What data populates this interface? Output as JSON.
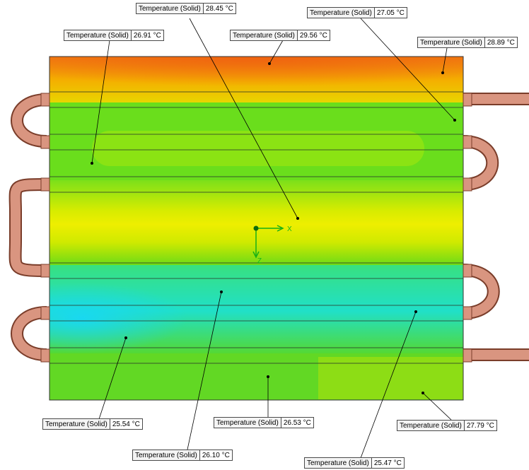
{
  "axes": {
    "x_label": "X",
    "z_label": "Z",
    "color": "#16b016"
  },
  "probes": [
    {
      "name": "Temperature (Solid)",
      "value": "28.45 °C"
    },
    {
      "name": "Temperature (Solid)",
      "value": "27.05 °C"
    },
    {
      "name": "Temperature (Solid)",
      "value": "26.91 °C"
    },
    {
      "name": "Temperature (Solid)",
      "value": "29.56 °C"
    },
    {
      "name": "Temperature (Solid)",
      "value": "28.89 °C"
    },
    {
      "name": "Temperature (Solid)",
      "value": "25.54 °C"
    },
    {
      "name": "Temperature (Solid)",
      "value": "26.53 °C"
    },
    {
      "name": "Temperature (Solid)",
      "value": "27.79 °C"
    },
    {
      "name": "Temperature (Solid)",
      "value": "26.10 °C"
    },
    {
      "name": "Temperature (Solid)",
      "value": "25.47 °C"
    }
  ],
  "colors": {
    "hot": "#ff8a00",
    "warm": "#f0e000",
    "mid": "#6ee01a",
    "cool": "#1fe8a0",
    "cold": "#18e6f0",
    "pipe": "#d9917c",
    "pipe_edge": "#7a3d2a"
  }
}
